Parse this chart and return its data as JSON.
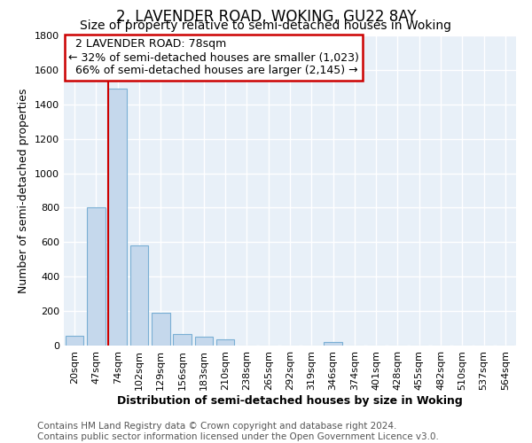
{
  "title": "2, LAVENDER ROAD, WOKING, GU22 8AY",
  "subtitle": "Size of property relative to semi-detached houses in Woking",
  "xlabel": "Distribution of semi-detached houses by size in Woking",
  "ylabel": "Number of semi-detached properties",
  "categories": [
    "20sqm",
    "47sqm",
    "74sqm",
    "102sqm",
    "129sqm",
    "156sqm",
    "183sqm",
    "210sqm",
    "238sqm",
    "265sqm",
    "292sqm",
    "319sqm",
    "346sqm",
    "374sqm",
    "401sqm",
    "428sqm",
    "455sqm",
    "482sqm",
    "510sqm",
    "537sqm",
    "564sqm"
  ],
  "values": [
    55,
    800,
    1490,
    580,
    190,
    65,
    50,
    35,
    0,
    0,
    0,
    0,
    20,
    0,
    0,
    0,
    0,
    0,
    0,
    0,
    0
  ],
  "bar_color": "#c5d8ec",
  "bar_edge_color": "#7aafd4",
  "annotation_box_color": "#ffffff",
  "annotation_box_edge": "#cc0000",
  "property_line_color": "#cc0000",
  "property_label": "2 LAVENDER ROAD: 78sqm",
  "pct_smaller": 32,
  "count_smaller": "1,023",
  "pct_larger": 66,
  "count_larger": "2,145",
  "ylim": [
    0,
    1800
  ],
  "yticks": [
    0,
    200,
    400,
    600,
    800,
    1000,
    1200,
    1400,
    1600,
    1800
  ],
  "footer": "Contains HM Land Registry data © Crown copyright and database right 2024.\nContains public sector information licensed under the Open Government Licence v3.0.",
  "background_color": "#ffffff",
  "plot_background": "#e8f0f8",
  "grid_color": "#ffffff",
  "title_fontsize": 12,
  "subtitle_fontsize": 10,
  "axis_label_fontsize": 9,
  "tick_fontsize": 8,
  "footer_fontsize": 7.5,
  "annotation_fontsize": 9
}
